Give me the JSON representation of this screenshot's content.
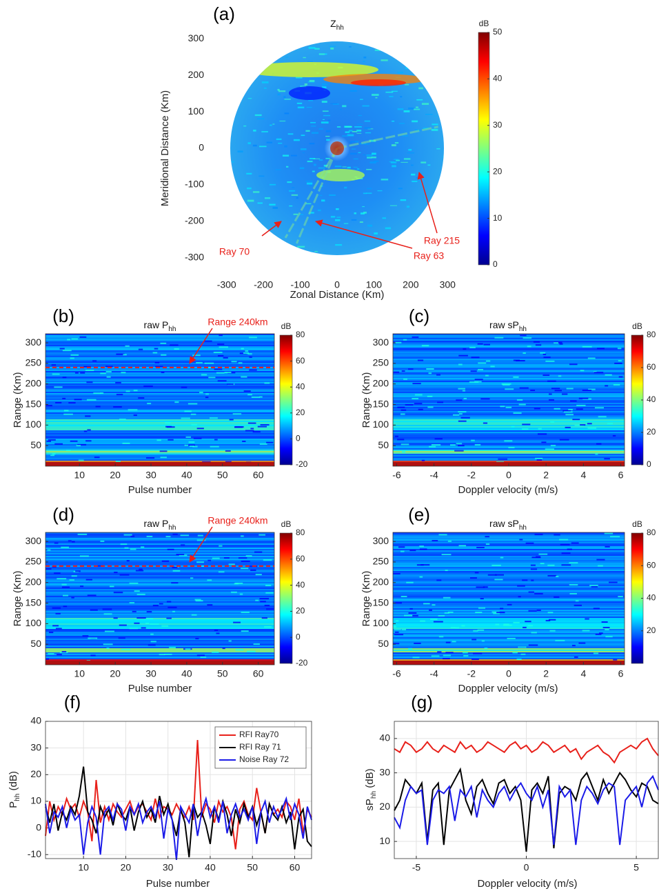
{
  "chart_data": [
    {
      "type": "radar",
      "panel": "(a)",
      "title": "Z",
      "title_subscript": "hh",
      "xlabel": "Zonal Distance (Km)",
      "ylabel": "Meridional Distance (Km)",
      "xlim": [
        -350,
        350
      ],
      "ylim": [
        -350,
        350
      ],
      "xticks": [
        -300,
        -200,
        -100,
        0,
        100,
        200,
        300
      ],
      "yticks": [
        -300,
        -200,
        -100,
        0,
        100,
        200,
        300
      ],
      "clim": [
        0,
        50
      ],
      "cticks": [
        0,
        10,
        20,
        30,
        40,
        50
      ],
      "colorbar_label": "dB",
      "annotations": [
        "Ray 70",
        "Ray 63",
        "Ray 215"
      ],
      "annotation_color": "#e8201a"
    },
    {
      "type": "heatmap",
      "panel": "(b)",
      "title": "raw P",
      "title_subscript": "hh",
      "xlabel": "Pulse number",
      "ylabel": "Range (Km)",
      "xlim": [
        0.5,
        64.5
      ],
      "ylim": [
        0,
        322
      ],
      "xticks": [
        10,
        20,
        30,
        40,
        50,
        60
      ],
      "yticks": [
        50,
        100,
        150,
        200,
        250,
        300
      ],
      "clim": [
        -20,
        80
      ],
      "cticks": [
        -20,
        0,
        20,
        40,
        60,
        80
      ],
      "colorbar_label": "dB",
      "range_line": 240,
      "range_label": "Range 240km",
      "annotation_color": "#e8201a"
    },
    {
      "type": "heatmap",
      "panel": "(c)",
      "title": "raw sP",
      "title_subscript": "hh",
      "xlabel": "Doppler velocity (m/s)",
      "ylabel": "Range (Km)",
      "xlim": [
        -6.2,
        6.2
      ],
      "ylim": [
        0,
        322
      ],
      "xticks": [
        -6,
        -4,
        -2,
        0,
        2,
        4,
        6
      ],
      "yticks": [
        50,
        100,
        150,
        200,
        250,
        300
      ],
      "clim": [
        0,
        80
      ],
      "cticks": [
        0,
        20,
        40,
        60,
        80
      ],
      "colorbar_label": "dB"
    },
    {
      "type": "heatmap",
      "panel": "(d)",
      "title": "raw P",
      "title_subscript": "hh",
      "xlabel": "Pulse number",
      "ylabel": "Range (Km)",
      "xlim": [
        0.5,
        64.5
      ],
      "ylim": [
        0,
        322
      ],
      "xticks": [
        10,
        20,
        30,
        40,
        50,
        60
      ],
      "yticks": [
        50,
        100,
        150,
        200,
        250,
        300
      ],
      "clim": [
        -20,
        80
      ],
      "cticks": [
        -20,
        0,
        20,
        40,
        60,
        80
      ],
      "colorbar_label": "dB",
      "range_line": 240,
      "range_label": "Range 240km",
      "annotation_color": "#e8201a"
    },
    {
      "type": "heatmap",
      "panel": "(e)",
      "title": "raw sP",
      "title_subscript": "hh",
      "xlabel": "Doppler velocity (m/s)",
      "ylabel": "Range (Km)",
      "xlim": [
        -6.2,
        6.2
      ],
      "ylim": [
        0,
        322
      ],
      "xticks": [
        -6,
        -4,
        -2,
        0,
        2,
        4,
        6
      ],
      "yticks": [
        50,
        100,
        150,
        200,
        250,
        300
      ],
      "clim": [
        0,
        80
      ],
      "cticks": [
        20,
        40,
        60,
        80
      ],
      "colorbar_label": "dB"
    },
    {
      "type": "line",
      "panel": "(f)",
      "xlabel": "Pulse number",
      "ylabel": "P",
      "ylabel_subscript": "hh",
      "ylabel_suffix": " (dB)",
      "xlim": [
        1,
        64
      ],
      "ylim": [
        -11.5,
        40
      ],
      "xticks": [
        10,
        20,
        30,
        40,
        50,
        60
      ],
      "yticks": [
        -10,
        0,
        10,
        20,
        30,
        40
      ],
      "grid": true,
      "legend": "upper right",
      "x": [
        1,
        2,
        3,
        4,
        5,
        6,
        7,
        8,
        9,
        10,
        11,
        12,
        13,
        14,
        15,
        16,
        17,
        18,
        19,
        20,
        21,
        22,
        23,
        24,
        25,
        26,
        27,
        28,
        29,
        30,
        31,
        32,
        33,
        34,
        35,
        36,
        37,
        38,
        39,
        40,
        41,
        42,
        43,
        44,
        45,
        46,
        47,
        48,
        49,
        50,
        51,
        52,
        53,
        54,
        55,
        56,
        57,
        58,
        59,
        60,
        61,
        62,
        63,
        64
      ],
      "series": [
        {
          "name": "RFI Ray70",
          "color": "#e8201a",
          "values": [
            -3,
            10,
            3,
            8,
            5,
            11,
            7,
            9,
            4,
            10,
            6,
            -5,
            18,
            2,
            8,
            3,
            9,
            6,
            4,
            7,
            10,
            5,
            8,
            9,
            6,
            3,
            11,
            4,
            8,
            7,
            5,
            9,
            6,
            4,
            8,
            3,
            33,
            4,
            9,
            7,
            2,
            10,
            6,
            8,
            4,
            -8,
            7,
            10,
            5,
            3,
            15,
            6,
            -2,
            9,
            5,
            7,
            4,
            10,
            8,
            3,
            11,
            -2,
            7,
            4
          ]
        },
        {
          "name": "RFI Ray 71",
          "color": "#000000",
          "values": [
            8,
            2,
            9,
            -1,
            6,
            3,
            8,
            5,
            12,
            23,
            6,
            3,
            -2,
            8,
            4,
            7,
            1,
            9,
            5,
            3,
            8,
            -1,
            6,
            10,
            4,
            7,
            2,
            12,
            5,
            9,
            3,
            -3,
            7,
            2,
            -11,
            9,
            4,
            6,
            1,
            -6,
            8,
            3,
            10,
            5,
            -3,
            7,
            2,
            9,
            4,
            8,
            1,
            6,
            -2,
            9,
            5,
            3,
            8,
            2,
            6,
            -8,
            4,
            7,
            -5,
            -7
          ]
        },
        {
          "name": "Noise Ray 72",
          "color": "#1a1ae8",
          "values": [
            9,
            -2,
            6,
            4,
            8,
            0,
            7,
            3,
            5,
            -10,
            2,
            8,
            4,
            -10,
            6,
            8,
            3,
            9,
            7,
            -1,
            8,
            5,
            9,
            2,
            6,
            8,
            4,
            10,
            -4,
            7,
            3,
            -12,
            8,
            5,
            2,
            9,
            -3,
            6,
            11,
            4,
            8,
            2,
            10,
            -2,
            5,
            9,
            4,
            7,
            3,
            8,
            -6,
            6,
            10,
            2,
            8,
            4,
            7,
            11,
            3,
            9,
            5,
            -4,
            8,
            3
          ]
        }
      ]
    },
    {
      "type": "line",
      "panel": "(g)",
      "xlabel": "Doppler velocity (m/s)",
      "ylabel": "sP",
      "ylabel_subscript": "hh",
      "ylabel_suffix": " (dB)",
      "xlim": [
        -6,
        6
      ],
      "ylim": [
        5,
        45
      ],
      "xticks": [
        -5,
        0,
        5
      ],
      "yticks": [
        10,
        20,
        30,
        40
      ],
      "grid": true,
      "x": [
        -6,
        -5.75,
        -5.5,
        -5.25,
        -5,
        -4.75,
        -4.5,
        -4.25,
        -4,
        -3.75,
        -3.5,
        -3.25,
        -3,
        -2.75,
        -2.5,
        -2.25,
        -2,
        -1.75,
        -1.5,
        -1.25,
        -1,
        -0.75,
        -0.5,
        -0.25,
        0,
        0.25,
        0.5,
        0.75,
        1,
        1.25,
        1.5,
        1.75,
        2,
        2.25,
        2.5,
        2.75,
        3,
        3.25,
        3.5,
        3.75,
        4,
        4.25,
        4.5,
        4.75,
        5,
        5.25,
        5.5,
        5.75,
        6
      ],
      "series": [
        {
          "name": "RFI Ray70",
          "color": "#e8201a",
          "values": [
            37,
            36,
            39,
            38,
            36,
            37,
            39,
            37,
            36,
            38,
            37,
            36,
            39,
            37,
            38,
            36,
            37,
            39,
            38,
            37,
            36,
            38,
            39,
            37,
            38,
            36,
            37,
            39,
            38,
            36,
            37,
            38,
            36,
            37,
            34,
            36,
            37,
            38,
            36,
            35,
            33,
            36,
            37,
            38,
            37,
            39,
            40,
            37,
            35
          ]
        },
        {
          "name": "RFI Ray 71",
          "color": "#000000",
          "values": [
            19,
            22,
            28,
            26,
            24,
            27,
            10,
            25,
            27,
            9,
            25,
            28,
            31,
            22,
            18,
            26,
            28,
            24,
            21,
            27,
            28,
            24,
            26,
            22,
            7,
            25,
            27,
            24,
            29,
            8,
            24,
            26,
            25,
            22,
            28,
            30,
            26,
            22,
            28,
            24,
            27,
            30,
            28,
            25,
            23,
            27,
            26,
            22,
            21
          ]
        },
        {
          "name": "Noise Ray 72",
          "color": "#1a1ae8",
          "values": [
            17,
            14,
            22,
            26,
            24,
            25,
            9,
            22,
            25,
            24,
            26,
            16,
            25,
            23,
            26,
            17,
            25,
            22,
            20,
            24,
            26,
            22,
            25,
            27,
            24,
            22,
            26,
            20,
            25,
            9,
            26,
            23,
            25,
            9,
            22,
            26,
            24,
            21,
            25,
            27,
            26,
            9,
            22,
            24,
            26,
            20,
            27,
            29,
            25
          ]
        }
      ]
    }
  ]
}
